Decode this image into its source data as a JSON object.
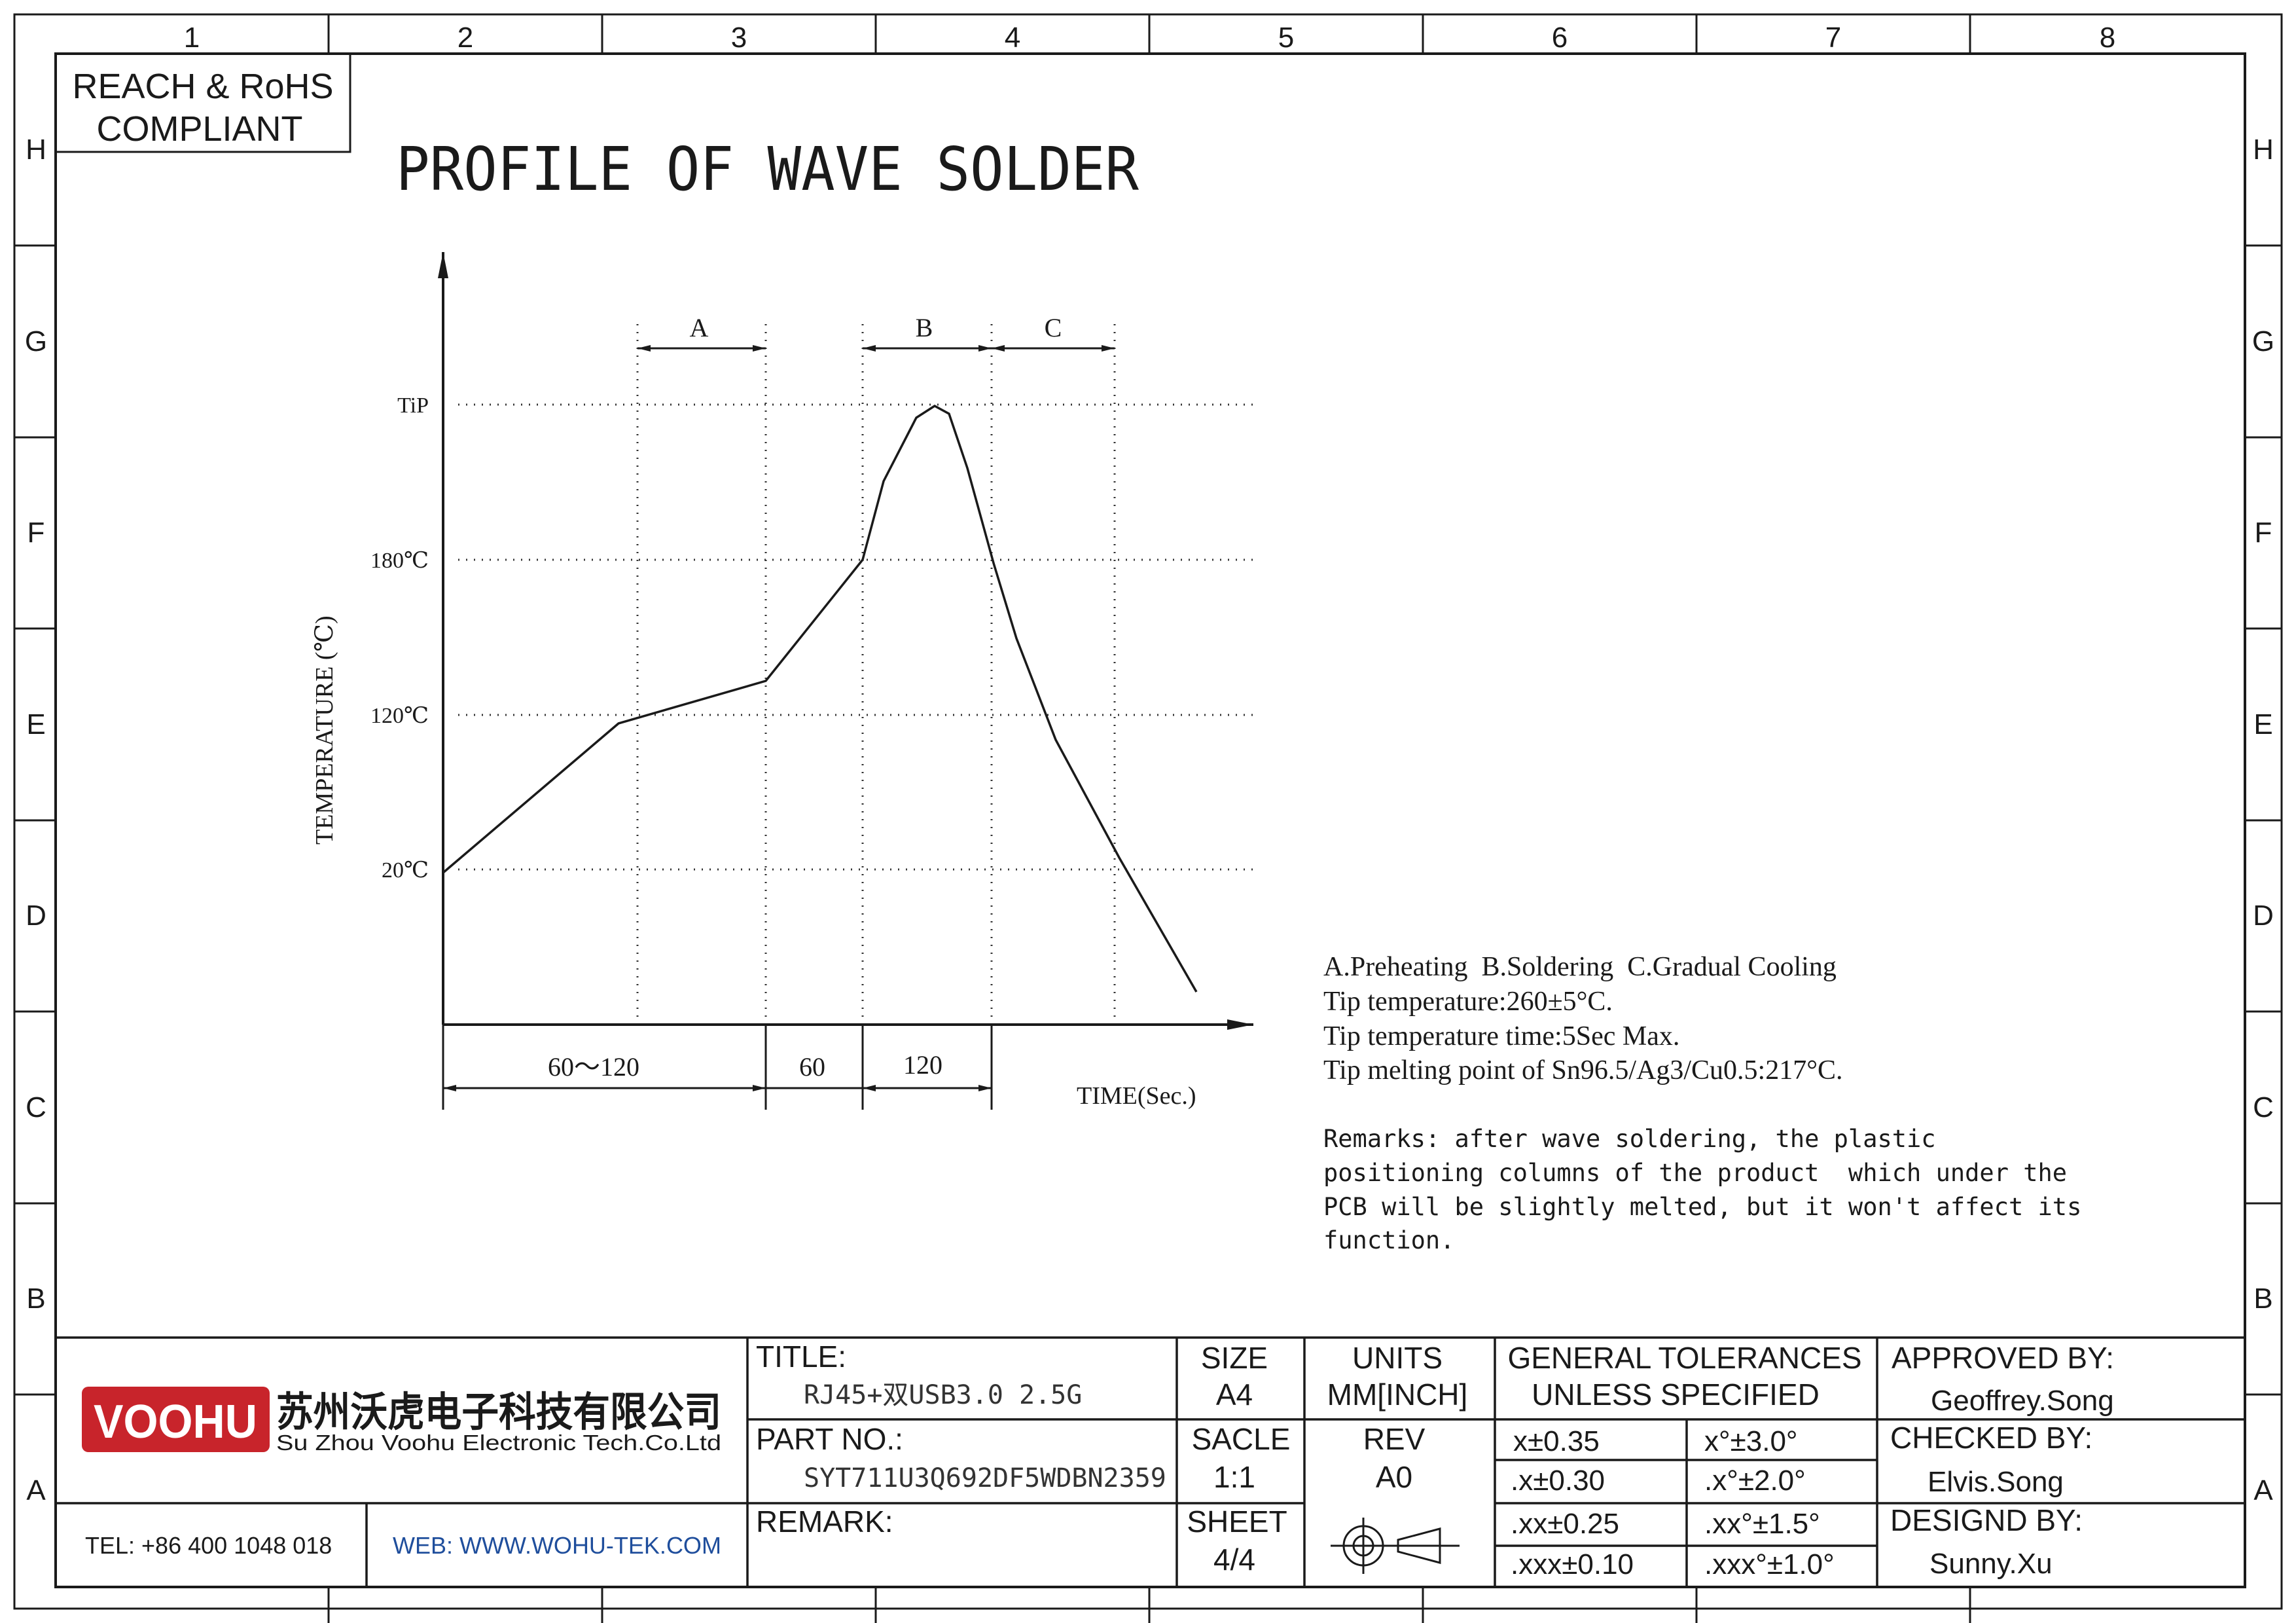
{
  "border": {
    "columns": [
      "1",
      "2",
      "3",
      "4",
      "5",
      "6",
      "7",
      "8"
    ],
    "rows": [
      "H",
      "G",
      "F",
      "E",
      "D",
      "C",
      "B",
      "A"
    ]
  },
  "compliance_box": {
    "line1": "REACH & RoHS",
    "line2": "COMPLIANT"
  },
  "drawing_title": "PROFILE OF WAVE SOLDER",
  "diagram": {
    "y_axis_label": "TEMPERATURE (℃)",
    "x_axis_label": "TIME(Sec.)",
    "temp_levels": [
      "TiP",
      "180℃",
      "120℃",
      "20℃"
    ],
    "zones": [
      "A",
      "B",
      "C"
    ],
    "durations": [
      "60～120",
      "60",
      "120"
    ]
  },
  "chart_data": {
    "type": "line",
    "title": "PROFILE OF WAVE SOLDER",
    "xlabel": "TIME(Sec.)",
    "ylabel": "TEMPERATURE (℃)",
    "y_ticks": [
      "20℃",
      "120℃",
      "180℃",
      "TiP"
    ],
    "zones": [
      {
        "name": "A",
        "meaning": "Preheating"
      },
      {
        "name": "B",
        "meaning": "Soldering"
      },
      {
        "name": "C",
        "meaning": "Gradual Cooling"
      }
    ],
    "x_intervals": [
      "60～120",
      "60",
      "120"
    ]
  },
  "notes": {
    "legend": "A.Preheating  B.Soldering  C.Gradual Cooling",
    "tip_temperature": "Tip temperature:260±5°C.",
    "tip_time": "Tip temperature time:5Sec Max.",
    "melting_point": "Tip melting point of Sn96.5/Ag3/Cu0.5:217°C.",
    "remarks": [
      "Remarks: after wave soldering, the plastic",
      "positioning columns of the product  which under the",
      "PCB will be slightly melted, but it won't affect its",
      "function."
    ]
  },
  "title_block": {
    "company_logo_text": "VOOHU",
    "company_name_cn": "苏州沃虎电子科技有限公司",
    "company_name_en": "Su Zhou Voohu Electronic Tech.Co.Ltd",
    "tel": "TEL: +86 400 1048 018",
    "web": "WEB: WWW.WOHU-TEK.COM",
    "title_label": "TITLE:",
    "title_value": "RJ45+双USB3.0 2.5G",
    "part_no_label": "PART NO.:",
    "part_no_value": "SYT711U3Q692DF5WDBN2359",
    "remark_label": "REMARK:",
    "size_label": "SIZE",
    "size_value": "A4",
    "scale_label": "SACLE",
    "scale_value": "1:1",
    "sheet_label": "SHEET",
    "sheet_value": "4/4",
    "units_label": "UNITS",
    "units_value": "MM[INCH]",
    "rev_label": "REV",
    "rev_value": "A0",
    "tol_label1": "GENERAL TOLERANCES",
    "tol_label2": "UNLESS SPECIFIED",
    "tolerances": [
      [
        "x±0.35",
        "x°±3.0°"
      ],
      [
        ".x±0.30",
        ".x°±2.0°"
      ],
      [
        ".xx±0.25",
        ".xx°±1.5°"
      ],
      [
        ".xxx±0.10",
        ".xxx°±1.0°"
      ]
    ],
    "approved_label": "APPROVED BY:",
    "approved_value": "Geoffrey.Song",
    "checked_label": "CHECKED BY:",
    "checked_value": "Elvis.Song",
    "designed_label": "DESIGND BY:",
    "designed_value": "Sunny.Xu",
    "colors": {
      "logo_red": "#c8242b",
      "web_blue": "#1f4e9c"
    }
  }
}
